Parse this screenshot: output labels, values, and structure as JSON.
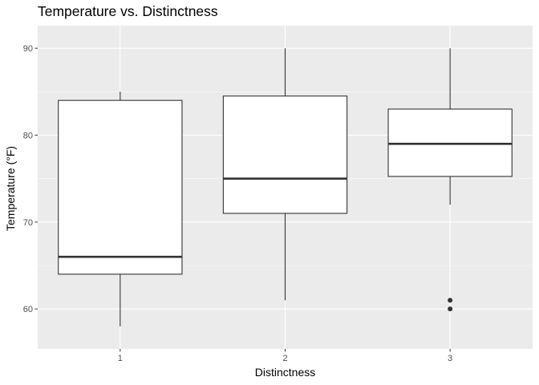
{
  "chart_data": {
    "type": "boxplot",
    "title": "Temperature vs. Distinctness",
    "xlabel": "Distinctness",
    "ylabel": "Temperature (°F)",
    "categories": [
      "1",
      "2",
      "3"
    ],
    "yticks": [
      60,
      70,
      80,
      90
    ],
    "ylim": [
      55.4,
      92.6
    ],
    "grid": true,
    "boxes": [
      {
        "category": "1",
        "whisker_low": 58,
        "q1": 64,
        "median": 66,
        "q3": 84,
        "whisker_high": 85,
        "outliers": []
      },
      {
        "category": "2",
        "whisker_low": 61,
        "q1": 71,
        "median": 75,
        "q3": 84.5,
        "whisker_high": 90,
        "outliers": []
      },
      {
        "category": "3",
        "whisker_low": 72,
        "q1": 75.25,
        "median": 79,
        "q3": 83,
        "whisker_high": 90,
        "outliers": [
          60,
          61
        ]
      }
    ],
    "colors": {
      "panel_background": "#ebebeb",
      "grid_major": "#ffffff",
      "box_fill": "#ffffff",
      "box_line": "#333333",
      "tick": "#333333"
    }
  }
}
